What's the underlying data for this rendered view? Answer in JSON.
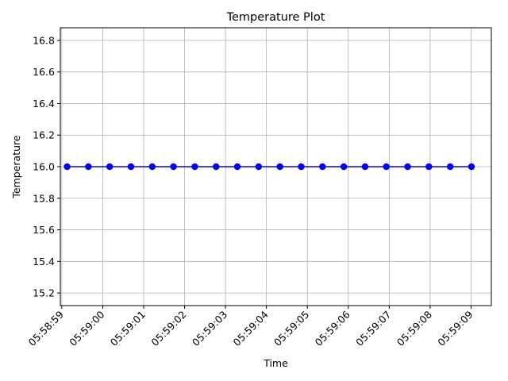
{
  "chart_data": {
    "type": "line",
    "title": "Temperature Plot",
    "xlabel": "Time",
    "ylabel": "Temperature",
    "x_ticks": [
      "05:58:59",
      "05:59:00",
      "05:59:01",
      "05:59:02",
      "05:59:03",
      "05:59:04",
      "05:59:05",
      "05:59:06",
      "05:59:07",
      "05:59:08",
      "05:59:09"
    ],
    "y_ticks": [
      "15.2",
      "15.4",
      "15.6",
      "15.8",
      "16.0",
      "16.2",
      "16.4",
      "16.6",
      "16.8"
    ],
    "xlim": [
      "05:58:58.964",
      "05:59:09.495"
    ],
    "ylim": [
      15.12,
      16.88
    ],
    "grid": true,
    "series": [
      {
        "color": "#0000ff",
        "marker": "circle",
        "x": [
          "05:58:59.130",
          "05:58:59.650",
          "05:59:00.170",
          "05:59:00.690",
          "05:59:01.210",
          "05:59:01.730",
          "05:59:02.250",
          "05:59:02.770",
          "05:59:03.290",
          "05:59:03.810",
          "05:59:04.330",
          "05:59:04.850",
          "05:59:05.370",
          "05:59:05.890",
          "05:59:06.410",
          "05:59:06.930",
          "05:59:07.450",
          "05:59:07.970",
          "05:59:08.490",
          "05:59:09.010"
        ],
        "values": [
          16.0,
          16.0,
          16.0,
          16.0,
          16.0,
          16.0,
          16.0,
          16.0,
          16.0,
          16.0,
          16.0,
          16.0,
          16.0,
          16.0,
          16.0,
          16.0,
          16.0,
          16.0,
          16.0,
          16.0
        ]
      }
    ]
  }
}
